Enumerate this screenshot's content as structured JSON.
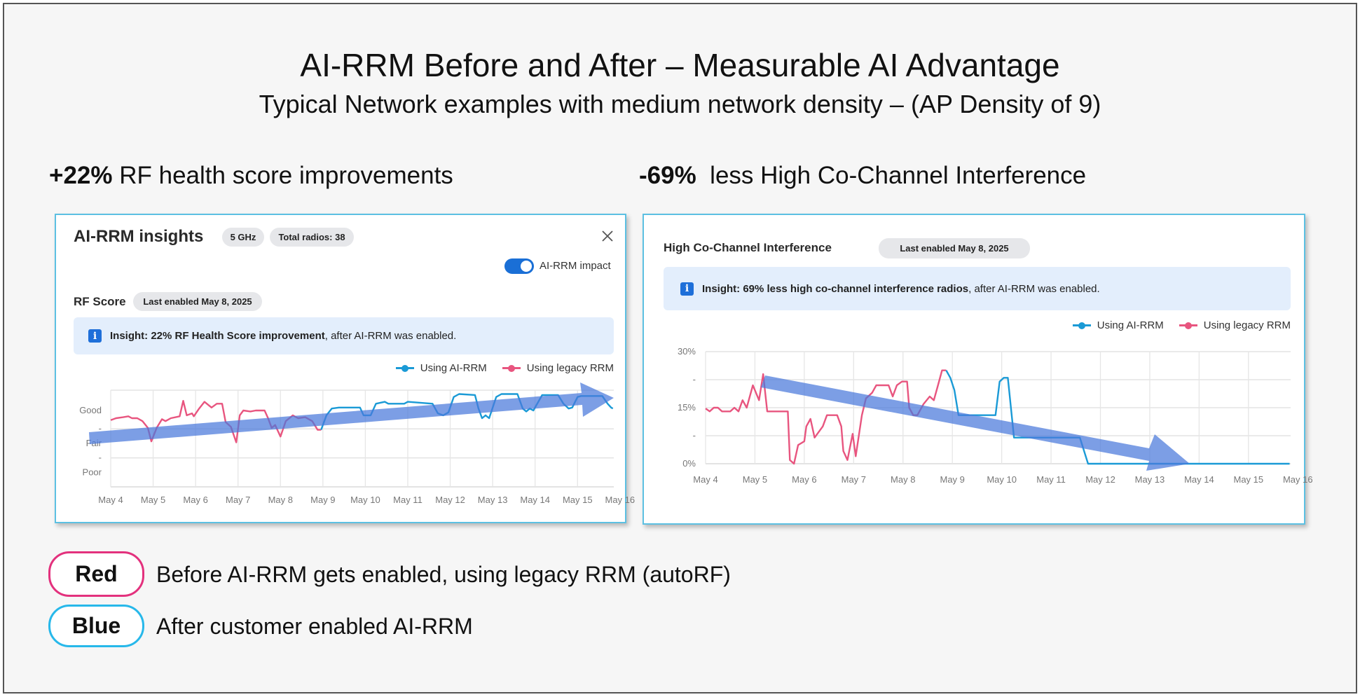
{
  "title": "AI-RRM Before and After – Measurable AI Advantage",
  "subtitle": "Typical Network examples with medium network density – (AP Density of 9)",
  "headline_left": {
    "value": "+22%",
    "text": " RF health score improvements"
  },
  "headline_right": {
    "value": "-69%",
    "text": "  less High Co-Channel Interference"
  },
  "colors": {
    "ai_rrm": "#1a9ad6",
    "legacy_rrm": "#e8557f",
    "trend_arrow": "#4a78db",
    "red_key": "#e3317d",
    "blue_key": "#27b8ea",
    "panel_border": "#5cc0e2"
  },
  "left_panel": {
    "title": "AI-RRM insights",
    "badges": [
      "5 GHz",
      "Total radios: 38"
    ],
    "close_icon": "close-icon",
    "toggle": {
      "label": "AI-RRM impact",
      "on": true
    },
    "section_title": "RF Score",
    "section_badge": "Last enabled May 8, 2025",
    "insight": {
      "icon": "info-icon",
      "bold": "Insight: 22% RF Health Score improvement",
      "rest": ", after AI-RRM was enabled."
    },
    "legend": [
      "Using AI-RRM",
      "Using legacy RRM"
    ]
  },
  "right_panel": {
    "section_title": "High Co-Channel Interference",
    "section_badge": "Last enabled May 8, 2025",
    "insight": {
      "icon": "info-icon",
      "bold": "Insight: 69% less high co-channel interference radios",
      "rest": ", after AI-RRM was enabled."
    },
    "legend": [
      "Using AI-RRM",
      "Using legacy RRM"
    ]
  },
  "chart_data": [
    {
      "type": "line",
      "title": "RF Score",
      "x_tick_labels": [
        "May 4",
        "May 5",
        "May 6",
        "May 7",
        "May 8",
        "May 9",
        "May 10",
        "May 11",
        "May 12",
        "May 13",
        "May 14",
        "May 15",
        "May 16"
      ],
      "xlim": [
        "2025-05-04T00:00",
        "2025-05-15T20:30"
      ],
      "ylim": [
        0,
        100
      ],
      "y_ticks": [
        {
          "value": 79,
          "label": "Good"
        },
        {
          "value": 60,
          "label": "-"
        },
        {
          "value": 45,
          "label": "Fair"
        },
        {
          "value": 30,
          "label": "-"
        },
        {
          "value": 15,
          "label": "Poor"
        }
      ],
      "y_gridlines": [
        0,
        30,
        60,
        100
      ],
      "grid": true,
      "legend_position": "top-right",
      "trend_arrow": "up",
      "series": [
        {
          "name": "Using legacy RRM",
          "color": "#e8557f",
          "points": [
            [
              "2025-05-04T00:00",
              69
            ],
            [
              "2025-05-04T03:00",
              71
            ],
            [
              "2025-05-04T07:00",
              72
            ],
            [
              "2025-05-04T10:00",
              73
            ],
            [
              "2025-05-04T12:00",
              71
            ],
            [
              "2025-05-04T15:00",
              71
            ],
            [
              "2025-05-04T18:00",
              68
            ],
            [
              "2025-05-04T21:00",
              61
            ],
            [
              "2025-05-04T23:00",
              47
            ],
            [
              "2025-05-05T02:00",
              61
            ],
            [
              "2025-05-05T05:00",
              70
            ],
            [
              "2025-05-05T07:00",
              68
            ],
            [
              "2025-05-05T10:00",
              71
            ],
            [
              "2025-05-05T15:00",
              73
            ],
            [
              "2025-05-05T17:00",
              89
            ],
            [
              "2025-05-05T19:00",
              74
            ],
            [
              "2025-05-05T22:00",
              76
            ],
            [
              "2025-05-05T23:00",
              73
            ],
            [
              "2025-05-06T02:00",
              81
            ],
            [
              "2025-05-06T05:00",
              88
            ],
            [
              "2025-05-06T09:00",
              82
            ],
            [
              "2025-05-06T12:00",
              86
            ],
            [
              "2025-05-06T15:00",
              86
            ],
            [
              "2025-05-06T17:00",
              67
            ],
            [
              "2025-05-06T20:00",
              62
            ],
            [
              "2025-05-06T23:00",
              46
            ],
            [
              "2025-05-07T01:00",
              74
            ],
            [
              "2025-05-07T03:00",
              79
            ],
            [
              "2025-05-07T07:00",
              78
            ],
            [
              "2025-05-07T10:00",
              79
            ],
            [
              "2025-05-07T15:00",
              79
            ],
            [
              "2025-05-07T17:00",
              71
            ],
            [
              "2025-05-07T19:00",
              61
            ],
            [
              "2025-05-07T21:00",
              64
            ],
            [
              "2025-05-08T00:00",
              52
            ],
            [
              "2025-05-08T03:00",
              68
            ],
            [
              "2025-05-08T07:00",
              74
            ],
            [
              "2025-05-08T10:00",
              71
            ],
            [
              "2025-05-08T14:00",
              72
            ],
            [
              "2025-05-08T18:00",
              68
            ],
            [
              "2025-05-08T21:00",
              59
            ],
            [
              "2025-05-08T23:00",
              59
            ]
          ]
        },
        {
          "name": "Using AI-RRM",
          "color": "#1a9ad6",
          "points": [
            [
              "2025-05-08T23:00",
              59
            ],
            [
              "2025-05-09T02:00",
              74
            ],
            [
              "2025-05-09T05:00",
              81
            ],
            [
              "2025-05-09T09:00",
              82
            ],
            [
              "2025-05-09T21:00",
              82
            ],
            [
              "2025-05-09T23:00",
              74
            ],
            [
              "2025-05-10T03:00",
              74
            ],
            [
              "2025-05-10T06:00",
              86
            ],
            [
              "2025-05-10T11:00",
              88
            ],
            [
              "2025-05-10T13:00",
              86
            ],
            [
              "2025-05-10T22:00",
              86
            ],
            [
              "2025-05-11T00:00",
              88
            ],
            [
              "2025-05-11T14:00",
              86
            ],
            [
              "2025-05-11T17:00",
              76
            ],
            [
              "2025-05-11T20:00",
              74
            ],
            [
              "2025-05-11T23:00",
              77
            ],
            [
              "2025-05-12T02:00",
              93
            ],
            [
              "2025-05-12T05:00",
              96
            ],
            [
              "2025-05-12T14:00",
              95
            ],
            [
              "2025-05-12T16:00",
              81
            ],
            [
              "2025-05-12T18:00",
              71
            ],
            [
              "2025-05-12T20:00",
              74
            ],
            [
              "2025-05-12T22:00",
              71
            ],
            [
              "2025-05-13T02:00",
              93
            ],
            [
              "2025-05-13T05:00",
              96
            ],
            [
              "2025-05-13T14:00",
              96
            ],
            [
              "2025-05-13T17:00",
              81
            ],
            [
              "2025-05-13T19:00",
              78
            ],
            [
              "2025-05-13T21:00",
              81
            ],
            [
              "2025-05-13T23:00",
              79
            ],
            [
              "2025-05-14T04:00",
              95
            ],
            [
              "2025-05-14T13:00",
              95
            ],
            [
              "2025-05-14T16:00",
              86
            ],
            [
              "2025-05-14T19:00",
              81
            ],
            [
              "2025-05-14T21:00",
              82
            ],
            [
              "2025-05-15T00:00",
              93
            ],
            [
              "2025-05-15T02:00",
              94
            ],
            [
              "2025-05-15T14:00",
              94
            ],
            [
              "2025-05-15T17:00",
              86
            ],
            [
              "2025-05-15T19:00",
              82
            ],
            [
              "2025-05-15T20:00",
              81
            ]
          ]
        }
      ]
    },
    {
      "type": "line",
      "title": "High Co-Channel Interference",
      "x_tick_labels": [
        "May 4",
        "May 5",
        "May 6",
        "May 7",
        "May 8",
        "May 9",
        "May 10",
        "May 11",
        "May 12",
        "May 13",
        "May 14",
        "May 15",
        "May 16"
      ],
      "xlim": [
        "2025-05-04T00:00",
        "2025-05-15T20:30"
      ],
      "ylim": [
        0,
        30
      ],
      "y_ticks": [
        {
          "value": 30,
          "label": "30%"
        },
        {
          "value": 22.5,
          "label": "-"
        },
        {
          "value": 15,
          "label": "15%"
        },
        {
          "value": 7.5,
          "label": "-"
        },
        {
          "value": 0,
          "label": "0%"
        }
      ],
      "y_gridlines": [
        0,
        7.5,
        15,
        22.5,
        30
      ],
      "grid": true,
      "legend_position": "top-right",
      "trend_arrow": "down",
      "series": [
        {
          "name": "Using legacy RRM",
          "color": "#e8557f",
          "points": [
            [
              "2025-05-04T00:00",
              14.8
            ],
            [
              "2025-05-04T02:00",
              14
            ],
            [
              "2025-05-04T04:00",
              15
            ],
            [
              "2025-05-04T06:00",
              15
            ],
            [
              "2025-05-04T08:00",
              14
            ],
            [
              "2025-05-04T12:00",
              14
            ],
            [
              "2025-05-04T14:00",
              15
            ],
            [
              "2025-05-04T16:00",
              14
            ],
            [
              "2025-05-04T18:00",
              17
            ],
            [
              "2025-05-04T20:00",
              15
            ],
            [
              "2025-05-04T23:00",
              21
            ],
            [
              "2025-05-05T02:00",
              17
            ],
            [
              "2025-05-05T04:00",
              24
            ],
            [
              "2025-05-05T06:00",
              14
            ],
            [
              "2025-05-05T16:00",
              14
            ],
            [
              "2025-05-05T17:00",
              1
            ],
            [
              "2025-05-05T19:00",
              0
            ],
            [
              "2025-05-05T21:00",
              5
            ],
            [
              "2025-05-06T00:00",
              6
            ],
            [
              "2025-05-06T01:00",
              10
            ],
            [
              "2025-05-06T03:00",
              12
            ],
            [
              "2025-05-06T05:00",
              7
            ],
            [
              "2025-05-06T09:00",
              10
            ],
            [
              "2025-05-06T11:00",
              13
            ],
            [
              "2025-05-06T16:00",
              13
            ],
            [
              "2025-05-06T18:00",
              10
            ],
            [
              "2025-05-06T19:00",
              3.4
            ],
            [
              "2025-05-06T21:00",
              1
            ],
            [
              "2025-05-06T23:30",
              8
            ],
            [
              "2025-05-07T01:00",
              2
            ],
            [
              "2025-05-07T04:00",
              13
            ],
            [
              "2025-05-07T06:00",
              17.5
            ],
            [
              "2025-05-07T09:00",
              19
            ],
            [
              "2025-05-07T11:00",
              21
            ],
            [
              "2025-05-07T17:00",
              21
            ],
            [
              "2025-05-07T19:00",
              18
            ],
            [
              "2025-05-07T21:00",
              21
            ],
            [
              "2025-05-07T23:30",
              22
            ],
            [
              "2025-05-08T02:00",
              22
            ],
            [
              "2025-05-08T03:00",
              15
            ],
            [
              "2025-05-08T05:00",
              13
            ],
            [
              "2025-05-08T07:00",
              13
            ],
            [
              "2025-05-08T10:00",
              16
            ],
            [
              "2025-05-08T13:00",
              18
            ],
            [
              "2025-05-08T15:00",
              17
            ],
            [
              "2025-05-08T17:00",
              21
            ],
            [
              "2025-05-08T19:00",
              25
            ],
            [
              "2025-05-08T21:00",
              25
            ]
          ]
        },
        {
          "name": "Using AI-RRM",
          "color": "#1a9ad6",
          "points": [
            [
              "2025-05-08T21:00",
              25
            ],
            [
              "2025-05-08T23:00",
              23
            ],
            [
              "2025-05-09T01:00",
              19.7
            ],
            [
              "2025-05-09T03:00",
              13
            ],
            [
              "2025-05-09T21:00",
              13
            ],
            [
              "2025-05-09T23:00",
              22
            ],
            [
              "2025-05-10T01:00",
              23
            ],
            [
              "2025-05-10T03:00",
              23
            ],
            [
              "2025-05-10T06:00",
              7
            ],
            [
              "2025-05-11T14:00",
              7
            ],
            [
              "2025-05-11T18:00",
              0
            ],
            [
              "2025-05-15T20:00",
              0
            ]
          ]
        }
      ]
    }
  ],
  "key": [
    {
      "label": "Red",
      "text": "Before AI-RRM gets enabled, using legacy RRM (autoRF)"
    },
    {
      "label": "Blue",
      "text": "After customer enabled AI-RRM"
    }
  ]
}
